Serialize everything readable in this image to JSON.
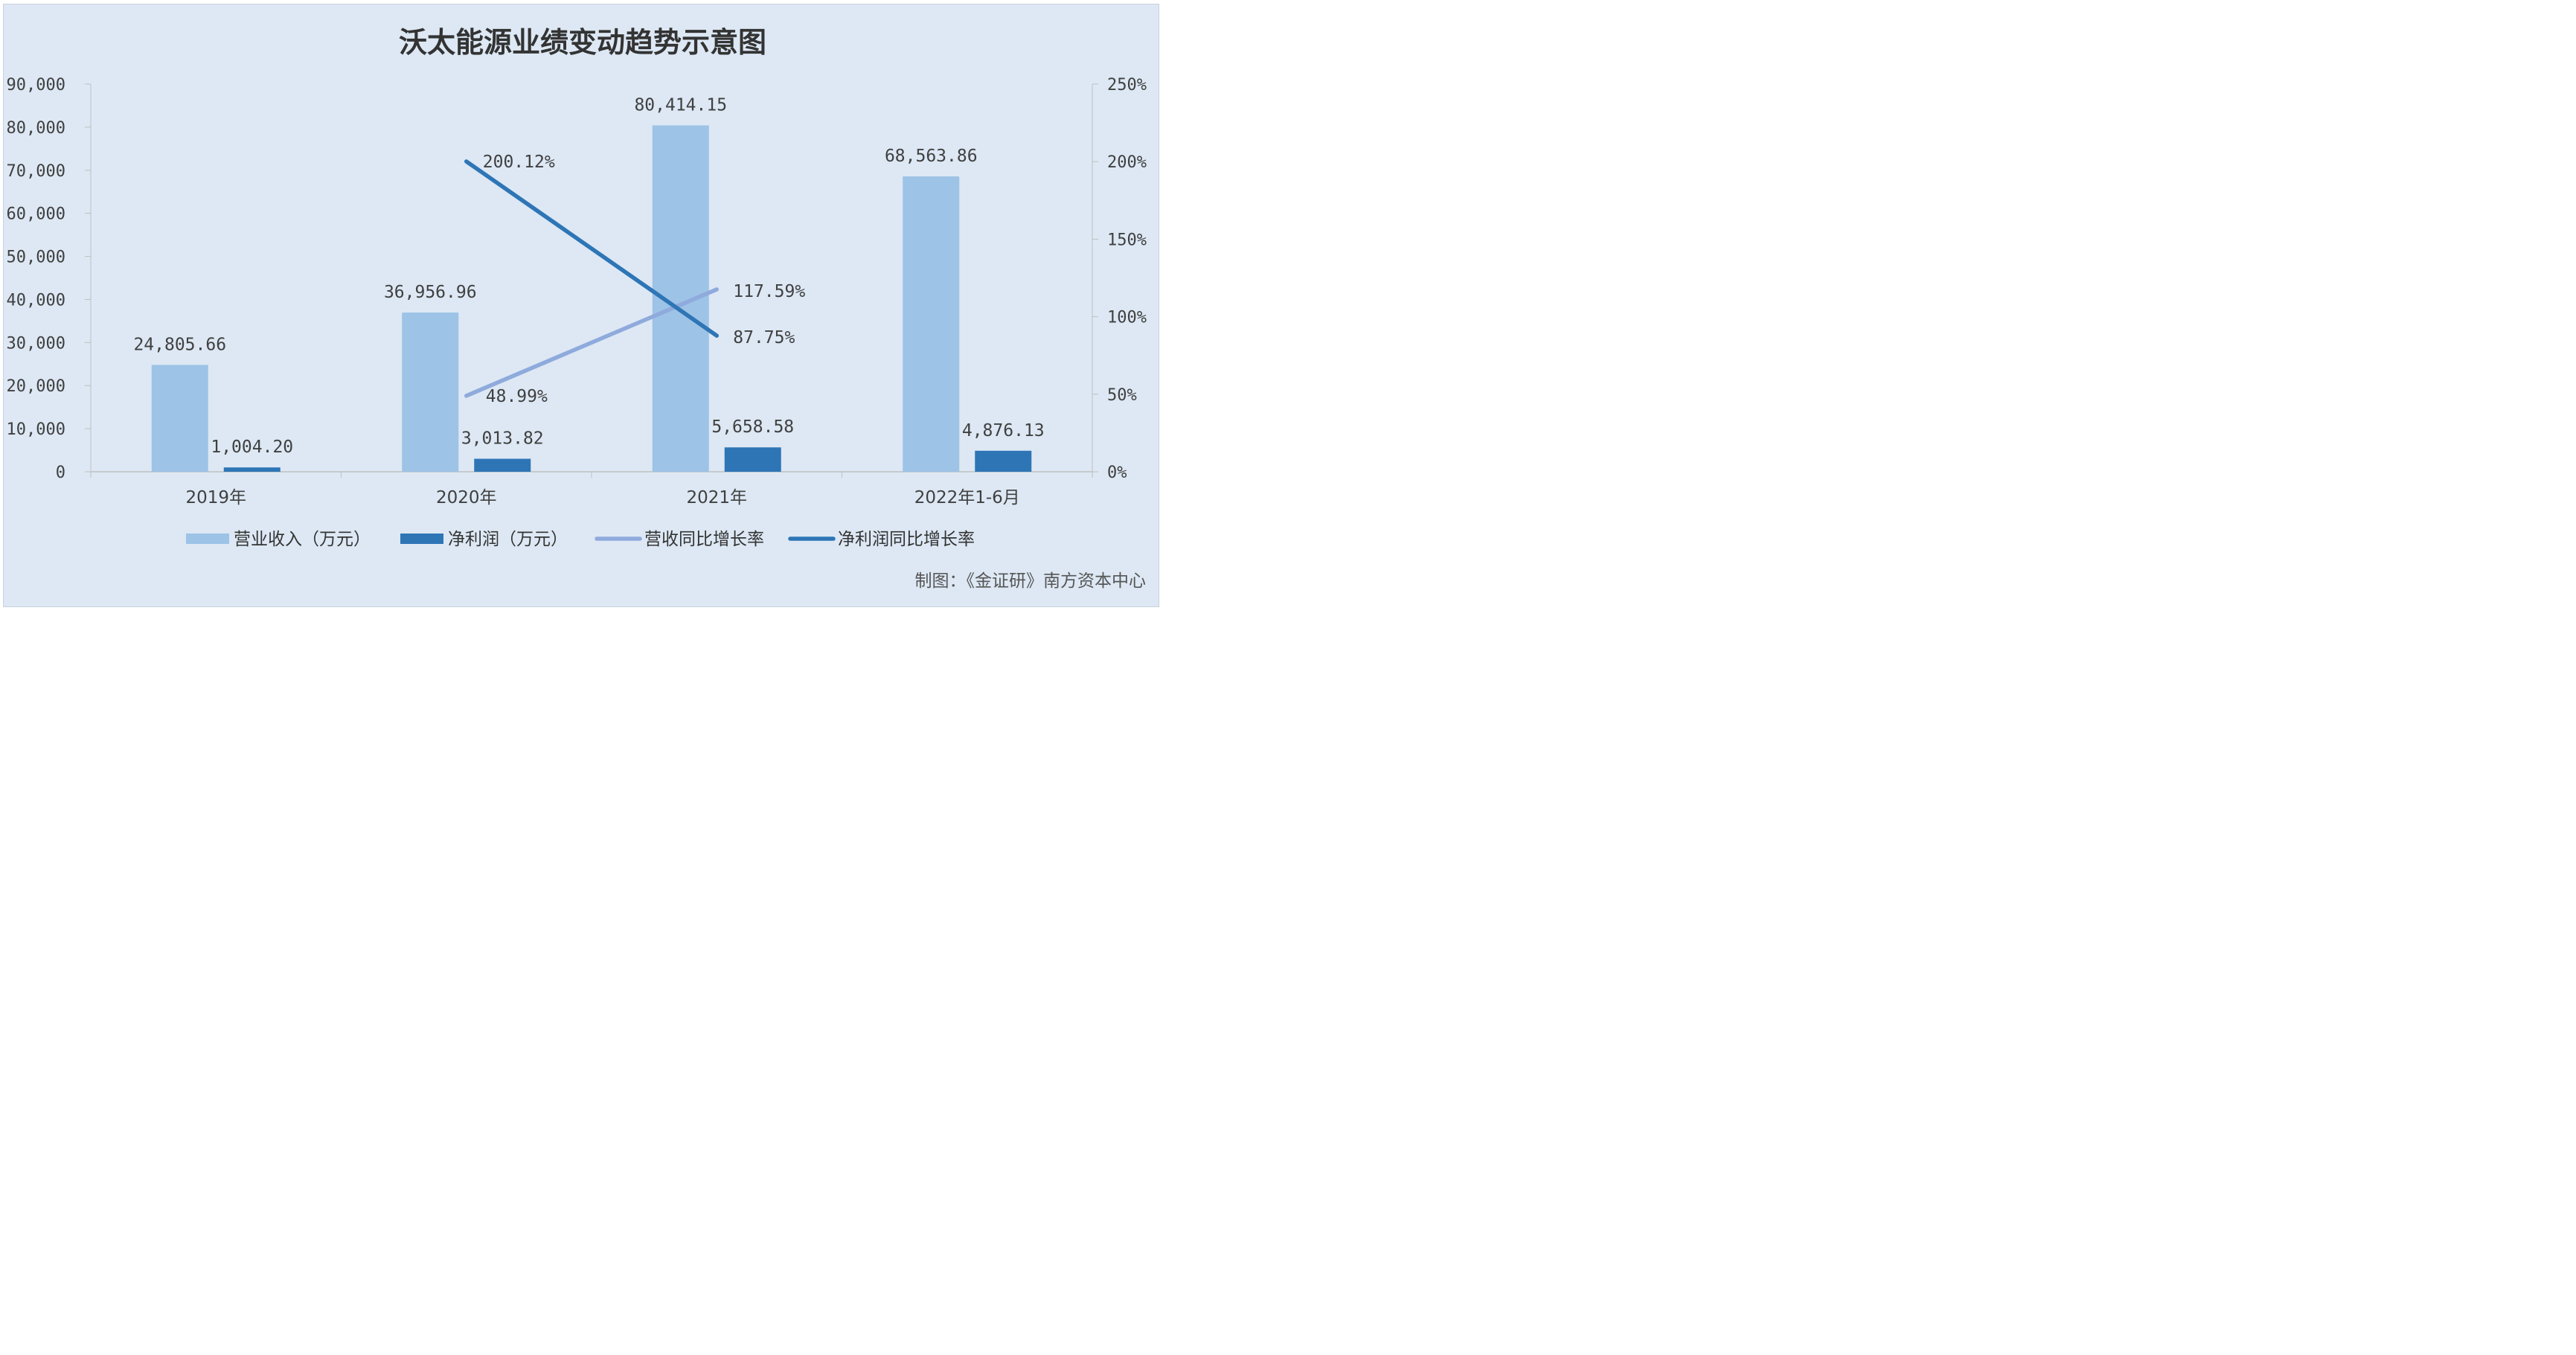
{
  "chart_data": {
    "type": "bar",
    "title": "沃太能源业绩变动趋势示意图",
    "categories": [
      "2019年",
      "2020年",
      "2021年",
      "2022年1-6月"
    ],
    "series": [
      {
        "name": "营业收入（万元）",
        "kind": "bar",
        "axis": "left",
        "color": "#9dc3e6",
        "values": [
          24805.66,
          36956.96,
          80414.15,
          68563.86
        ],
        "labels": [
          "24,805.66",
          "36,956.96",
          "80,414.15",
          "68,563.86"
        ]
      },
      {
        "name": "净利润（万元）",
        "kind": "bar",
        "axis": "left",
        "color": "#2e75b6",
        "values": [
          1004.2,
          3013.82,
          5658.58,
          4876.13
        ],
        "labels": [
          "1,004.20",
          "3,013.82",
          "5,658.58",
          "4,876.13"
        ]
      },
      {
        "name": "营收同比增长率",
        "kind": "line",
        "axis": "right",
        "color": "#8faadc",
        "values": [
          null,
          48.99,
          117.59,
          null
        ],
        "labels": [
          null,
          "48.99%",
          "117.59%",
          null
        ]
      },
      {
        "name": "净利润同比增长率",
        "kind": "line",
        "axis": "right",
        "color": "#2e75b6",
        "values": [
          null,
          200.12,
          87.75,
          null
        ],
        "labels": [
          null,
          "200.12%",
          "87.75%",
          null
        ]
      }
    ],
    "y_left": {
      "min": 0,
      "max": 90000,
      "ticks": [
        0,
        10000,
        20000,
        30000,
        40000,
        50000,
        60000,
        70000,
        80000,
        90000
      ],
      "tick_labels": [
        "0",
        "10,000",
        "20,000",
        "30,000",
        "40,000",
        "50,000",
        "60,000",
        "70,000",
        "80,000",
        "90,000"
      ]
    },
    "y_right": {
      "min": 0,
      "max": 250,
      "ticks": [
        0,
        50,
        100,
        150,
        200,
        250
      ],
      "tick_labels": [
        "0%",
        "50%",
        "100%",
        "150%",
        "200%",
        "250%"
      ]
    },
    "legend_position": "bottom",
    "grid": false
  },
  "credit": "制图：《金证研》南方资本中心"
}
